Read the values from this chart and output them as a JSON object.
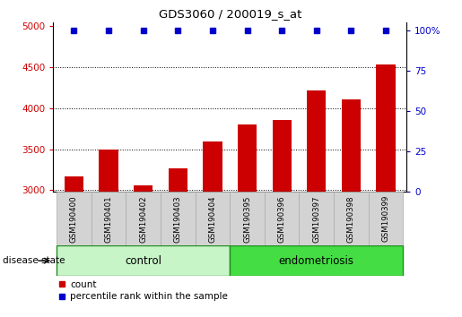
{
  "title": "GDS3060 / 200019_s_at",
  "samples": [
    "GSM190400",
    "GSM190401",
    "GSM190402",
    "GSM190403",
    "GSM190404",
    "GSM190395",
    "GSM190396",
    "GSM190397",
    "GSM190398",
    "GSM190399"
  ],
  "counts": [
    3170,
    3500,
    3060,
    3270,
    3590,
    3800,
    3860,
    4220,
    4110,
    4530
  ],
  "percentile_ranks": [
    100,
    100,
    100,
    100,
    100,
    100,
    100,
    100,
    100,
    100
  ],
  "groups": [
    "control",
    "control",
    "control",
    "control",
    "control",
    "endometriosis",
    "endometriosis",
    "endometriosis",
    "endometriosis",
    "endometriosis"
  ],
  "control_color_light": "#c8f5c8",
  "control_color_dark": "#228B22",
  "endo_color_light": "#44dd44",
  "endo_color_dark": "#228B22",
  "bar_color": "#CC0000",
  "percentile_color": "#0000CC",
  "ylim_left": [
    2980,
    5050
  ],
  "yticks_left": [
    3000,
    3500,
    4000,
    4500,
    5000
  ],
  "ylim_right": [
    0,
    105
  ],
  "yticks_right": [
    0,
    25,
    50,
    75,
    100
  ],
  "ylabel_left_color": "#CC0000",
  "ylabel_right_color": "#0000CC",
  "disease_state_label": "disease state",
  "legend_count_label": "count",
  "legend_percentile_label": "percentile rank within the sample",
  "bar_width": 0.55,
  "tick_label_box_color": "#d3d3d3",
  "tick_label_box_edge": "#aaaaaa",
  "grid_color": "#000000",
  "title_fontsize": 9.5
}
